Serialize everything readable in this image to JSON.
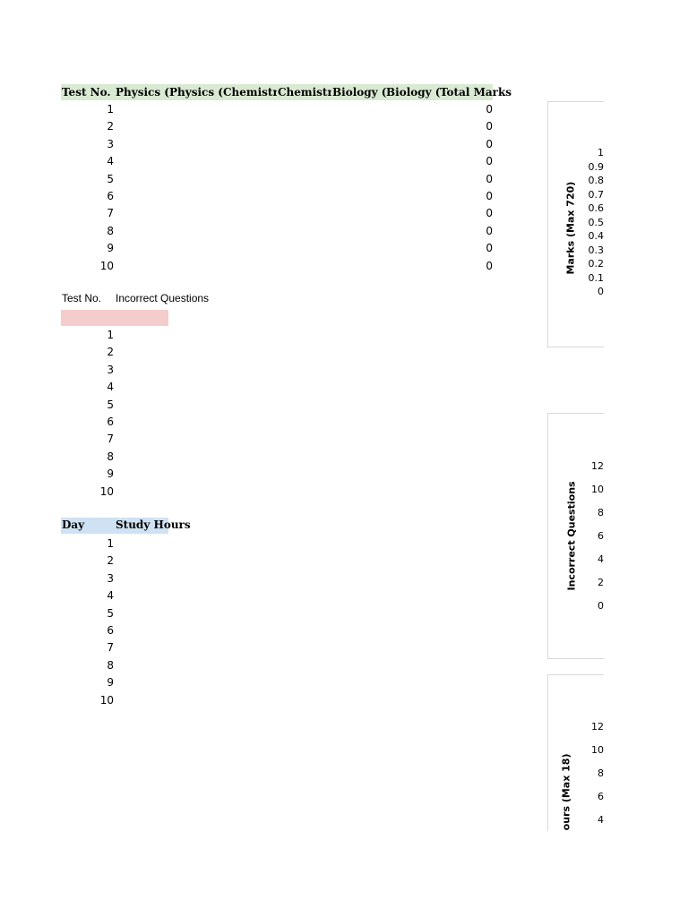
{
  "table_marks": {
    "headers": [
      "Test No.",
      "Physics (Correct)",
      "Physics (Incorrect)",
      "Chemistry (Correct)",
      "Chemistry (Incorrect)",
      "Biology (Correct)",
      "Biology (Incorrect)",
      "Total Marks"
    ],
    "rows": [
      {
        "n": "1",
        "total": "0"
      },
      {
        "n": "2",
        "total": "0"
      },
      {
        "n": "3",
        "total": "0"
      },
      {
        "n": "4",
        "total": "0"
      },
      {
        "n": "5",
        "total": "0"
      },
      {
        "n": "6",
        "total": "0"
      },
      {
        "n": "7",
        "total": "0"
      },
      {
        "n": "8",
        "total": "0"
      },
      {
        "n": "9",
        "total": "0"
      },
      {
        "n": "10",
        "total": "0"
      }
    ]
  },
  "table_incorrect": {
    "headers": [
      "Test No.",
      "Incorrect Questions"
    ],
    "rows": [
      "1",
      "2",
      "3",
      "4",
      "5",
      "6",
      "7",
      "8",
      "9",
      "10"
    ]
  },
  "table_study": {
    "headers": [
      "Day",
      "Study Hours"
    ],
    "rows": [
      "1",
      "2",
      "3",
      "4",
      "5",
      "6",
      "7",
      "8",
      "9",
      "10"
    ]
  },
  "colors": {
    "green_header": "#d9ead3",
    "red_header": "#f4cccc",
    "blue_header": "#cfe2f3"
  },
  "chart_data": [
    {
      "type": "line",
      "ylabel": "Marks (Max 720)",
      "yticks": [
        "1",
        "0.9",
        "0.8",
        "0.7",
        "0.6",
        "0.5",
        "0.4",
        "0.3",
        "0.2",
        "0.1",
        "0"
      ],
      "ylim": [
        0,
        1
      ]
    },
    {
      "type": "line",
      "ylabel": "Incorrect Questions",
      "yticks": [
        "12",
        "10",
        "8",
        "6",
        "4",
        "2",
        "0"
      ],
      "ylim": [
        0,
        12
      ]
    },
    {
      "type": "line",
      "ylabel": "ours (Max 18)",
      "yticks": [
        "12",
        "10",
        "8",
        "6",
        "4"
      ],
      "ylim": [
        4,
        12
      ]
    }
  ]
}
